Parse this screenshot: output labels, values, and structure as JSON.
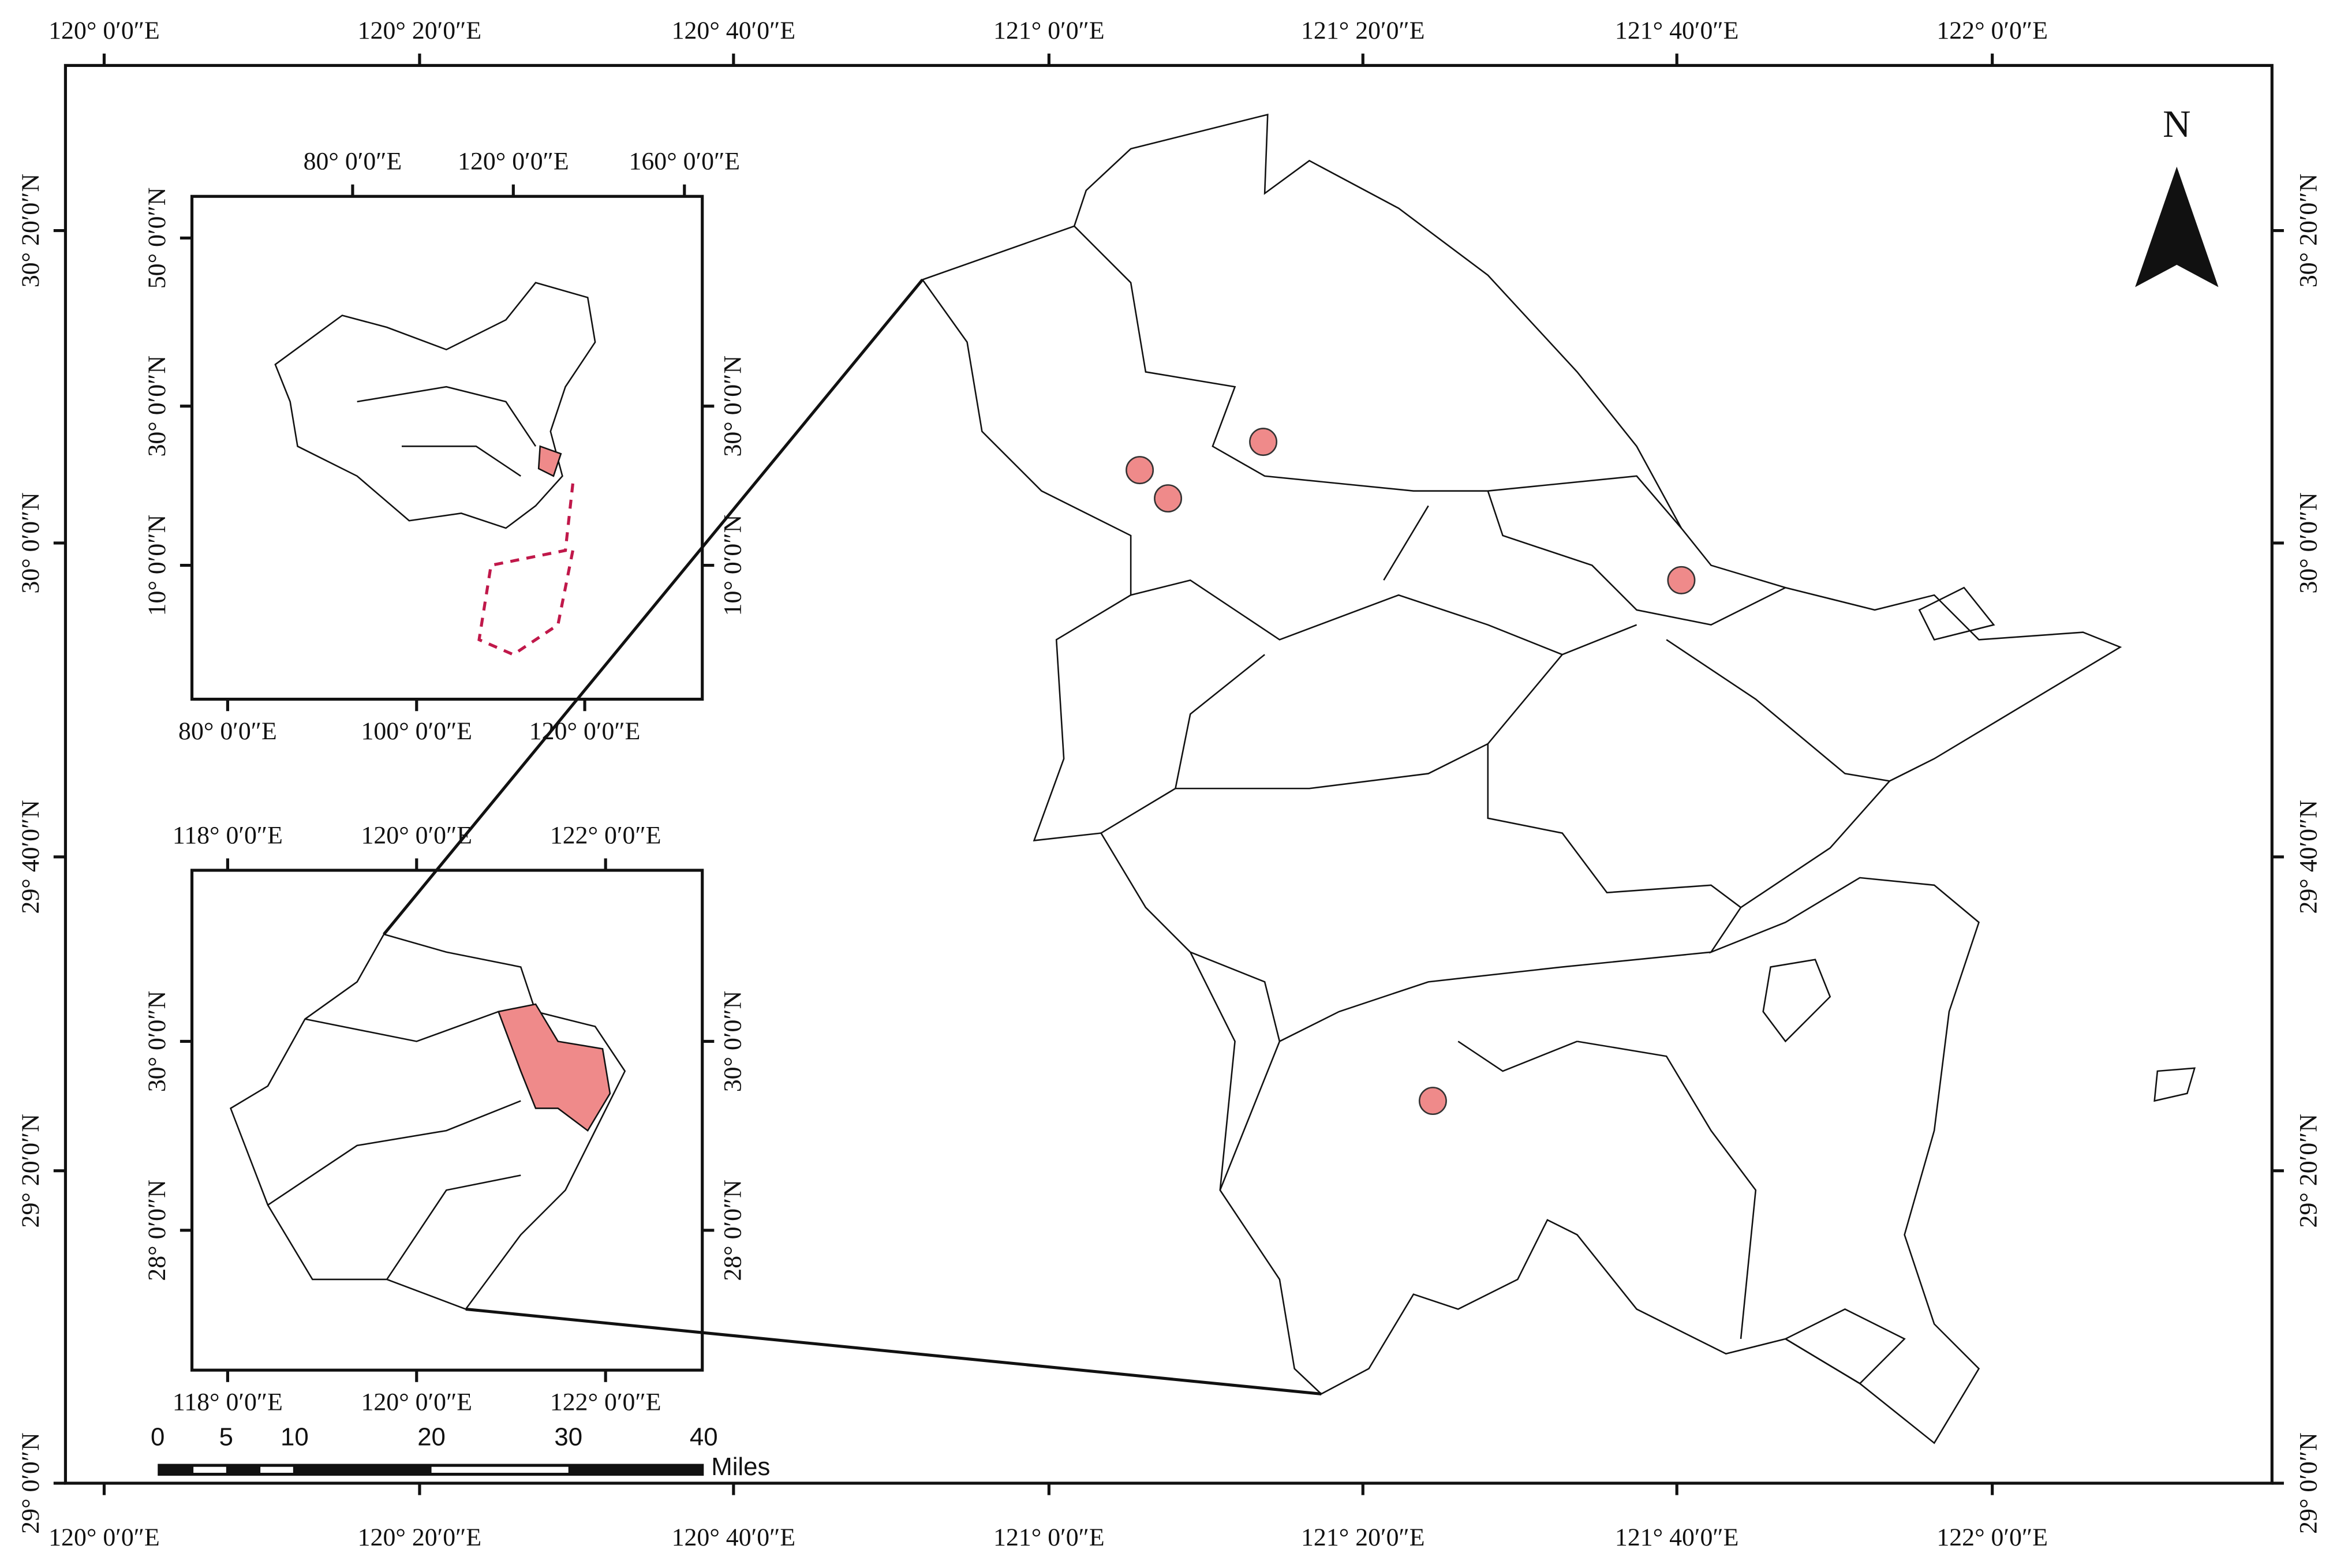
{
  "main_map": {
    "x_ticks": [
      "120° 0′0″E",
      "120° 20′0″E",
      "120° 40′0″E",
      "121° 0′0″E",
      "121° 20′0″E",
      "121° 40′0″E",
      "122° 0′0″E"
    ],
    "y_ticks": [
      "30° 20′0″N",
      "30° 0′0″N",
      "29° 40′0″N",
      "29° 20′0″N",
      "29° 0′0″N"
    ]
  },
  "north_label": "N",
  "inset_world": {
    "top_ticks": [
      "80° 0′0″E",
      "120° 0′0″E",
      "160° 0′0″E"
    ],
    "bottom_ticks": [
      "80° 0′0″E",
      "100° 0′0″E",
      "120° 0′0″E"
    ],
    "left_ticks": [
      "50° 0′0″N",
      "30° 0′0″N",
      "10° 0′0″N"
    ],
    "right_ticks": [
      "30° 0′0″N",
      "10° 0′0″N"
    ]
  },
  "inset_region": {
    "x_ticks": [
      "118° 0′0″E",
      "120° 0′0″E",
      "122° 0′0″E"
    ],
    "y_ticks": [
      "30° 0′0″N",
      "28° 0′0″N"
    ]
  },
  "scale_bar": {
    "labels": [
      "0",
      "5",
      "10",
      "20",
      "30",
      "40"
    ],
    "unit": "Miles"
  }
}
